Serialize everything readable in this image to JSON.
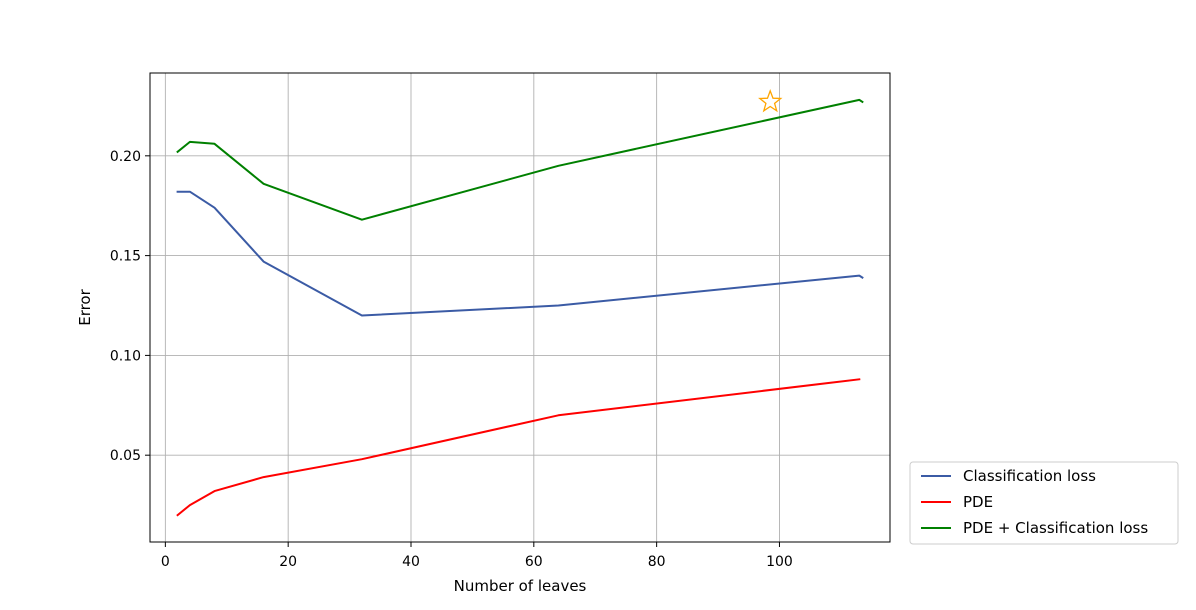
{
  "chart_data": {
    "type": "line",
    "title": "",
    "xlabel": "Number of leaves",
    "ylabel": "Error",
    "xlim": [
      -2.5,
      118
    ],
    "ylim": [
      0.0065,
      0.2415
    ],
    "xticks": [
      0,
      20,
      40,
      60,
      80,
      100
    ],
    "xtick_labels": [
      "0",
      "20",
      "40",
      "60",
      "80",
      "100"
    ],
    "yticks": [
      0.05,
      0.1,
      0.15,
      0.2
    ],
    "ytick_labels": [
      "0.05",
      "0.10",
      "0.15",
      "0.20"
    ],
    "grid": true,
    "legend_placement": "outside-lower-right",
    "series": [
      {
        "name": "Classification loss",
        "color": "#3b5ba5",
        "x": [
          2,
          4,
          8,
          16,
          32,
          64,
          113,
          113.5
        ],
        "y": [
          0.182,
          0.182,
          0.174,
          0.147,
          0.12,
          0.125,
          0.14,
          0.139
        ]
      },
      {
        "name": "PDE",
        "color": "#ff0000",
        "x": [
          2,
          4,
          8,
          16,
          32,
          64,
          113
        ],
        "y": [
          0.02,
          0.025,
          0.032,
          0.039,
          0.048,
          0.07,
          0.088
        ]
      },
      {
        "name": "PDE + Classification loss",
        "color": "#008000",
        "x": [
          2,
          4,
          8,
          16,
          32,
          64,
          113,
          113.5
        ],
        "y": [
          0.202,
          0.207,
          0.206,
          0.186,
          0.168,
          0.195,
          0.228,
          0.227
        ]
      }
    ],
    "annotations": [
      {
        "type": "star-marker",
        "x": 98.5,
        "y": 0.227,
        "color": "#ffa500",
        "icon": "star-outline-icon"
      }
    ]
  }
}
